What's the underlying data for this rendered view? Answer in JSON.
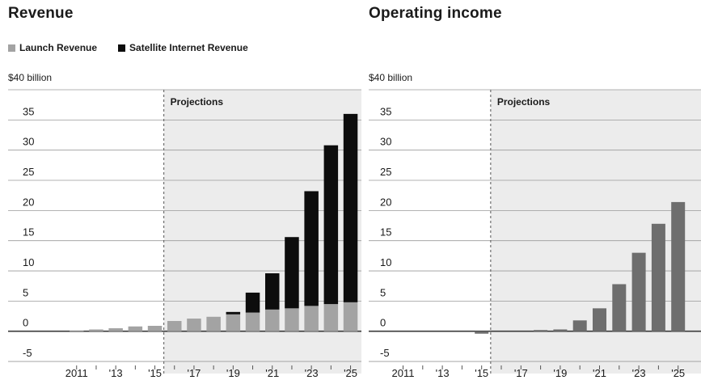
{
  "colors": {
    "launch": "#a3a3a3",
    "satellite": "#0d0d0d",
    "income": "#6e6e6e",
    "projection_bg": "#ececec",
    "grid": "#9a9a9a"
  },
  "chart_data": [
    {
      "type": "bar",
      "stacked": true,
      "title": "Revenue",
      "ylabel": "$40 billion",
      "ylim": [
        -7,
        40
      ],
      "yticks": [
        35,
        30,
        25,
        20,
        15,
        10,
        5,
        0,
        -5
      ],
      "categories": [
        "2011",
        "2012",
        "2013",
        "2014",
        "2015",
        "2016",
        "2017",
        "2018",
        "2019",
        "2020",
        "2021",
        "2022",
        "2023",
        "2024",
        "2025"
      ],
      "x_tick_labels": [
        "2011",
        "'13",
        "'15",
        "'17",
        "'19",
        "'21",
        "'23",
        "'25"
      ],
      "projection_label": "Projections",
      "projection_start": "2016",
      "legend_position": "top-left",
      "series": [
        {
          "name": "Launch Revenue",
          "values": [
            0.1,
            0.3,
            0.5,
            0.8,
            0.9,
            1.7,
            2.1,
            2.4,
            2.8,
            3.1,
            3.6,
            3.8,
            4.2,
            4.5,
            4.8
          ]
        },
        {
          "name": "Satellite Internet Revenue",
          "values": [
            0,
            0,
            0,
            0,
            0,
            0,
            0,
            0,
            0.4,
            3.3,
            6.0,
            11.8,
            19.0,
            26.3,
            31.2
          ]
        }
      ]
    },
    {
      "type": "bar",
      "title": "Operating income",
      "ylabel": "$40 billion",
      "ylim": [
        -7,
        40
      ],
      "yticks": [
        35,
        30,
        25,
        20,
        15,
        10,
        5,
        0,
        -5
      ],
      "categories": [
        "2011",
        "2012",
        "2013",
        "2014",
        "2015",
        "2016",
        "2017",
        "2018",
        "2019",
        "2020",
        "2021",
        "2022",
        "2023",
        "2024",
        "2025"
      ],
      "x_tick_labels": [
        "2011",
        "'13",
        "'15",
        "'17",
        "'19",
        "'21",
        "'23",
        "'25"
      ],
      "projection_label": "Projections",
      "projection_start": "2016",
      "series": [
        {
          "values": [
            0,
            0,
            0,
            0,
            -0.4,
            0,
            0,
            0.2,
            0.3,
            1.8,
            3.8,
            7.8,
            13.0,
            17.8,
            21.4
          ]
        }
      ]
    }
  ]
}
